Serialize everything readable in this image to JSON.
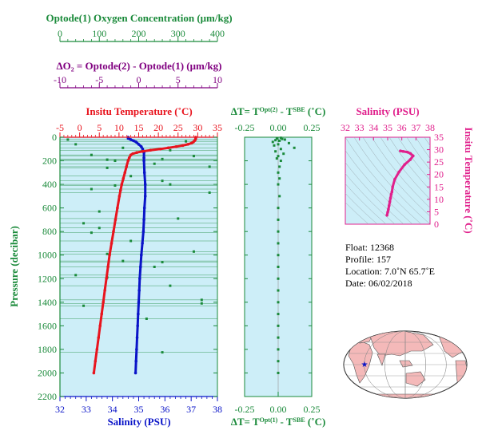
{
  "colors": {
    "oxygen": "#1a8a3a",
    "delta_o2": "#800080",
    "temperature": "#e8141e",
    "salinity": "#0a14c8",
    "pressure_axis": "#1a8a3a",
    "delta_t": "#1a8a3a",
    "ts": "#e0208c",
    "panel_bg": "#cdeef8",
    "map_land": "#f4b9b9",
    "map_ocean": "#ffffff"
  },
  "chart_data": [
    {
      "type": "scatter",
      "name": "main-profile",
      "ylabel": "Pressure (decibar)",
      "ylim": [
        2200,
        0
      ],
      "yticks": [
        "0",
        "200",
        "400",
        "600",
        "800",
        "1000",
        "1200",
        "1400",
        "1600",
        "1800",
        "2000",
        "2200"
      ],
      "axes": {
        "oxygen": {
          "label": "Optode(1) Oxygen Concentration  (μm/kg)",
          "range": [
            0,
            400
          ],
          "ticks": [
            "0",
            "100",
            "200",
            "300",
            "400"
          ]
        },
        "delta_o2": {
          "label": "ΔO₂ = Optode(2) - Optode(1)   (μm/kg)",
          "range": [
            -10,
            10
          ],
          "ticks": [
            "-10",
            "-5",
            "0",
            "5",
            "10"
          ]
        },
        "temperature": {
          "label": "Insitu Temperature  (˚C)",
          "range": [
            -5,
            35
          ],
          "ticks": [
            "-5",
            "0",
            "5",
            "10",
            "15",
            "20",
            "25",
            "30",
            "35"
          ]
        },
        "salinity": {
          "label": "Salinity  (PSU)",
          "range": [
            32,
            38
          ],
          "ticks": [
            "32",
            "33",
            "34",
            "35",
            "36",
            "37",
            "38"
          ]
        }
      },
      "series": [
        {
          "key": "temperature",
          "points": [
            [
              29.5,
              0
            ],
            [
              29.5,
              10
            ],
            [
              29.4,
              20
            ],
            [
              29.2,
              30
            ],
            [
              28.9,
              40
            ],
            [
              28.4,
              50
            ],
            [
              27.5,
              60
            ],
            [
              26.2,
              70
            ],
            [
              24.5,
              80
            ],
            [
              22.5,
              90
            ],
            [
              20.5,
              100
            ],
            [
              18.0,
              110
            ],
            [
              16.0,
              120
            ],
            [
              14.5,
              130
            ],
            [
              13.5,
              140
            ],
            [
              13.0,
              150
            ],
            [
              12.6,
              175
            ],
            [
              12.3,
              200
            ],
            [
              11.9,
              250
            ],
            [
              11.5,
              300
            ],
            [
              11.1,
              350
            ],
            [
              10.7,
              400
            ],
            [
              10.4,
              450
            ],
            [
              10.1,
              500
            ],
            [
              9.6,
              600
            ],
            [
              9.1,
              700
            ],
            [
              8.6,
              800
            ],
            [
              8.1,
              900
            ],
            [
              7.6,
              1000
            ],
            [
              7.2,
              1100
            ],
            [
              6.8,
              1200
            ],
            [
              6.4,
              1300
            ],
            [
              6.0,
              1400
            ],
            [
              5.6,
              1500
            ],
            [
              5.2,
              1600
            ],
            [
              4.8,
              1700
            ],
            [
              4.4,
              1800
            ],
            [
              4.0,
              1900
            ],
            [
              3.6,
              2000
            ]
          ]
        },
        {
          "key": "salinity",
          "points": [
            [
              34.6,
              0
            ],
            [
              34.6,
              10
            ],
            [
              34.7,
              20
            ],
            [
              34.8,
              30
            ],
            [
              34.9,
              40
            ],
            [
              35.0,
              60
            ],
            [
              35.1,
              80
            ],
            [
              35.15,
              100
            ],
            [
              35.2,
              130
            ],
            [
              35.2,
              175
            ],
            [
              35.2,
              200
            ],
            [
              35.22,
              300
            ],
            [
              35.25,
              400
            ],
            [
              35.25,
              500
            ],
            [
              35.22,
              600
            ],
            [
              35.2,
              700
            ],
            [
              35.18,
              800
            ],
            [
              35.14,
              900
            ],
            [
              35.1,
              1000
            ],
            [
              35.07,
              1100
            ],
            [
              35.04,
              1200
            ],
            [
              35.02,
              1300
            ],
            [
              35.0,
              1400
            ],
            [
              34.98,
              1500
            ],
            [
              34.96,
              1600
            ],
            [
              34.94,
              1700
            ],
            [
              34.92,
              1800
            ],
            [
              34.9,
              1900
            ],
            [
              34.88,
              2000
            ]
          ]
        },
        {
          "key": "delta_o2",
          "points": [
            [
              -9,
              20
            ],
            [
              -8,
              60
            ],
            [
              6,
              35
            ],
            [
              -2,
              90
            ],
            [
              4,
              110
            ],
            [
              -6,
              150
            ],
            [
              7,
              160
            ],
            [
              3,
              185
            ],
            [
              -4,
              190
            ],
            [
              -3,
              200
            ],
            [
              2,
              225
            ],
            [
              9,
              250
            ],
            [
              -4,
              260
            ],
            [
              -1,
              330
            ],
            [
              3,
              370
            ],
            [
              -3,
              410
            ],
            [
              4,
              400
            ],
            [
              -6,
              440
            ],
            [
              9,
              470
            ],
            [
              -5,
              630
            ],
            [
              5,
              690
            ],
            [
              -7,
              730
            ],
            [
              -5,
              770
            ],
            [
              -6,
              810
            ],
            [
              -1,
              880
            ],
            [
              7,
              970
            ],
            [
              -4,
              990
            ],
            [
              -2,
              1050
            ],
            [
              3,
              1060
            ],
            [
              2,
              1100
            ],
            [
              -8,
              1170
            ],
            [
              -4,
              1190
            ],
            [
              4,
              1260
            ],
            [
              8,
              1380
            ],
            [
              8,
              1410
            ],
            [
              -7,
              1430
            ],
            [
              1,
              1540
            ],
            [
              3,
              1825
            ]
          ]
        }
      ]
    },
    {
      "type": "scatter",
      "name": "delta-t",
      "xlabel_top": "ΔT= T^Opt(2) - T^SBE (˚C)",
      "xlabel_bottom": "ΔT= T^Opt(1) - T^SBE (˚C)",
      "xlim": [
        -0.25,
        0.25
      ],
      "xticks": [
        "-0.25",
        "0.00",
        "0.25"
      ],
      "ylim": [
        2200,
        0
      ],
      "points": [
        [
          0.02,
          5
        ],
        [
          -0.01,
          10
        ],
        [
          0.03,
          15
        ],
        [
          0.05,
          20
        ],
        [
          -0.02,
          25
        ],
        [
          0.01,
          30
        ],
        [
          -0.04,
          40
        ],
        [
          0.08,
          50
        ],
        [
          0.0,
          60
        ],
        [
          -0.03,
          70
        ],
        [
          0.12,
          90
        ],
        [
          0.02,
          100
        ],
        [
          -0.02,
          120
        ],
        [
          0.04,
          140
        ],
        [
          0.0,
          160
        ],
        [
          -0.01,
          180
        ],
        [
          0.02,
          200
        ],
        [
          0.01,
          250
        ],
        [
          0.0,
          300
        ],
        [
          0.01,
          350
        ],
        [
          0.0,
          400
        ],
        [
          0.01,
          500
        ],
        [
          0.0,
          600
        ],
        [
          0.0,
          700
        ],
        [
          0.0,
          800
        ],
        [
          0.0,
          900
        ],
        [
          0.0,
          1000
        ],
        [
          0.0,
          1100
        ],
        [
          0.0,
          1200
        ],
        [
          0.0,
          1300
        ],
        [
          0.0,
          1400
        ],
        [
          0.0,
          1500
        ],
        [
          0.0,
          1600
        ],
        [
          0.0,
          1700
        ],
        [
          0.0,
          1800
        ],
        [
          0.0,
          1900
        ],
        [
          0.0,
          2000
        ]
      ]
    },
    {
      "type": "line",
      "name": "t-s",
      "xlabel": "Salinity (PSU)",
      "ylabel": "Insitu Temperature (˚C)",
      "xlim": [
        32,
        38
      ],
      "ylim": [
        0,
        35
      ],
      "xticks": [
        "32",
        "33",
        "34",
        "35",
        "36",
        "37",
        "38"
      ],
      "yticks": [
        "0",
        "5",
        "10",
        "15",
        "20",
        "25",
        "30",
        "35"
      ],
      "points": [
        [
          35.9,
          29.5
        ],
        [
          36.1,
          29.3
        ],
        [
          36.4,
          29.0
        ],
        [
          36.6,
          28.5
        ],
        [
          36.8,
          27.5
        ],
        [
          36.6,
          26.0
        ],
        [
          36.2,
          24.0
        ],
        [
          35.8,
          21.0
        ],
        [
          35.5,
          18.0
        ],
        [
          35.35,
          15.0
        ],
        [
          35.3,
          13.0
        ],
        [
          35.25,
          12.0
        ],
        [
          35.2,
          10.5
        ],
        [
          35.15,
          9.0
        ],
        [
          35.1,
          7.5
        ],
        [
          35.05,
          6.0
        ],
        [
          35.0,
          4.8
        ],
        [
          34.95,
          3.6
        ]
      ]
    }
  ],
  "info": {
    "float": "Float:  12368",
    "profile": "Profile:  157",
    "location": "Location:  7.0˚N  65.7˚E",
    "date": "Date:  06/02/2018"
  }
}
